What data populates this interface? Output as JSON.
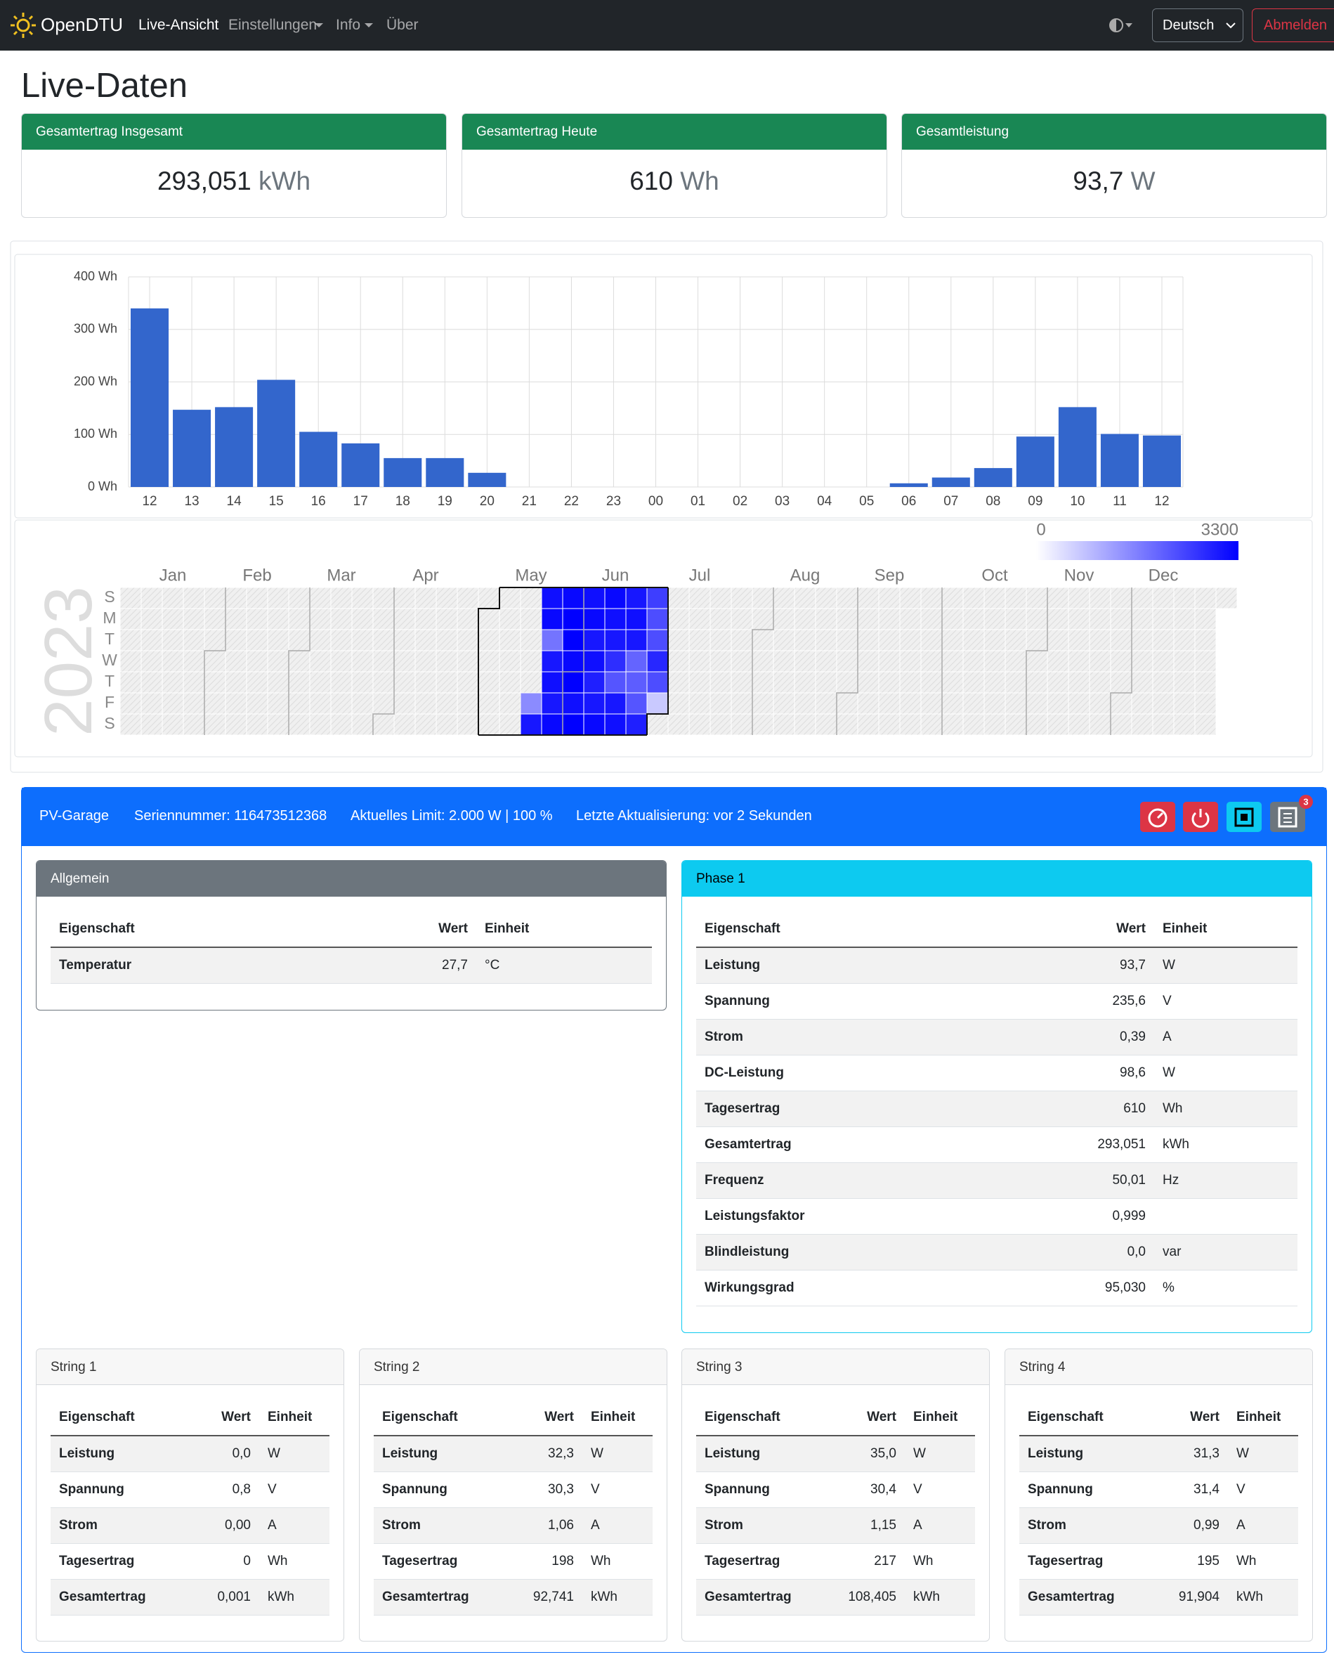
{
  "navbar": {
    "brand": "OpenDTU",
    "items": [
      "Live-Ansicht",
      "Einstellungen",
      "Info",
      "Über"
    ],
    "language": "Deutsch",
    "logout": "Abmelden"
  },
  "page_title": "Live-Daten",
  "summary": [
    {
      "title": "Gesamtertrag Insgesamt",
      "value": "293,051",
      "unit": "kWh"
    },
    {
      "title": "Gesamtertrag Heute",
      "value": "610",
      "unit": "Wh"
    },
    {
      "title": "Gesamtleistung",
      "value": "93,7",
      "unit": "W"
    }
  ],
  "chart_data": [
    {
      "type": "bar",
      "categories": [
        "12",
        "13",
        "14",
        "15",
        "16",
        "17",
        "18",
        "19",
        "20",
        "21",
        "22",
        "23",
        "00",
        "01",
        "02",
        "03",
        "04",
        "05",
        "06",
        "07",
        "08",
        "09",
        "10",
        "11",
        "12"
      ],
      "values": [
        340,
        147,
        152,
        204,
        105,
        83,
        55,
        55,
        27,
        0,
        0,
        0,
        0,
        0,
        0,
        0,
        0,
        0,
        7,
        18,
        36,
        96,
        152,
        101,
        98
      ],
      "color": "#3366cc",
      "ylim": [
        0,
        400
      ],
      "yticks": [
        {
          "value": 0,
          "label": "0 Wh"
        },
        {
          "value": 100,
          "label": "100 Wh"
        },
        {
          "value": 200,
          "label": "200 Wh"
        },
        {
          "value": 300,
          "label": "300 Wh"
        },
        {
          "value": 400,
          "label": "400 Wh"
        }
      ],
      "grid": true
    },
    {
      "type": "heatmap",
      "year": "2023",
      "months": [
        "Jan",
        "Feb",
        "Mar",
        "Apr",
        "May",
        "Jun",
        "Jul",
        "Aug",
        "Sep",
        "Oct",
        "Nov",
        "Dec"
      ],
      "weekdays": [
        "S",
        "M",
        "T",
        "W",
        "T",
        "F",
        "S"
      ],
      "clim": [
        0,
        3300
      ],
      "color": "#0000ff",
      "values": [
        [
          null,
          null,
          null,
          null,
          null,
          1500,
          3000
        ],
        [
          3100,
          3200,
          1800,
          3000,
          3100,
          3000,
          3200
        ],
        [
          3200,
          3300,
          3300,
          3200,
          3300,
          3100,
          3300
        ],
        [
          3100,
          3200,
          3000,
          3100,
          2900,
          3000,
          3200
        ],
        [
          3200,
          3100,
          3000,
          2700,
          2200,
          3000,
          3100
        ],
        [
          3000,
          3100,
          3000,
          2000,
          2100,
          2200,
          2900
        ],
        [
          2500,
          2300,
          2300,
          2800,
          2300,
          700,
          null
        ]
      ]
    }
  ],
  "inverter": {
    "name": "PV-Garage",
    "serial": "Seriennummer: 116473512368",
    "limit": "Aktuelles Limit: 2.000 W | 100 %",
    "updated": "Letzte Aktualisierung: vor 2 Sekunden",
    "badge": "3"
  },
  "tables": [
    {
      "title": "Allgemein",
      "header": [
        "Eigenschaft",
        "Wert",
        "Einheit"
      ],
      "rows": [
        [
          "Temperatur",
          "27,7",
          "°C"
        ]
      ]
    },
    {
      "title": "Phase 1",
      "header": [
        "Eigenschaft",
        "Wert",
        "Einheit"
      ],
      "rows": [
        [
          "Leistung",
          "93,7",
          "W"
        ],
        [
          "Spannung",
          "235,6",
          "V"
        ],
        [
          "Strom",
          "0,39",
          "A"
        ],
        [
          "DC-Leistung",
          "98,6",
          "W"
        ],
        [
          "Tagesertrag",
          "610",
          "Wh"
        ],
        [
          "Gesamtertrag",
          "293,051",
          "kWh"
        ],
        [
          "Frequenz",
          "50,01",
          "Hz"
        ],
        [
          "Leistungsfaktor",
          "0,999",
          ""
        ],
        [
          "Blindleistung",
          "0,0",
          "var"
        ],
        [
          "Wirkungsgrad",
          "95,030",
          "%"
        ]
      ]
    },
    {
      "title": "String 1",
      "header": [
        "Eigenschaft",
        "Wert",
        "Einheit"
      ],
      "rows": [
        [
          "Leistung",
          "0,0",
          "W"
        ],
        [
          "Spannung",
          "0,8",
          "V"
        ],
        [
          "Strom",
          "0,00",
          "A"
        ],
        [
          "Tagesertrag",
          "0",
          "Wh"
        ],
        [
          "Gesamtertrag",
          "0,001",
          "kWh"
        ]
      ]
    },
    {
      "title": "String 2",
      "header": [
        "Eigenschaft",
        "Wert",
        "Einheit"
      ],
      "rows": [
        [
          "Leistung",
          "32,3",
          "W"
        ],
        [
          "Spannung",
          "30,3",
          "V"
        ],
        [
          "Strom",
          "1,06",
          "A"
        ],
        [
          "Tagesertrag",
          "198",
          "Wh"
        ],
        [
          "Gesamtertrag",
          "92,741",
          "kWh"
        ]
      ]
    },
    {
      "title": "String 3",
      "header": [
        "Eigenschaft",
        "Wert",
        "Einheit"
      ],
      "rows": [
        [
          "Leistung",
          "35,0",
          "W"
        ],
        [
          "Spannung",
          "30,4",
          "V"
        ],
        [
          "Strom",
          "1,15",
          "A"
        ],
        [
          "Tagesertrag",
          "217",
          "Wh"
        ],
        [
          "Gesamtertrag",
          "108,405",
          "kWh"
        ]
      ]
    },
    {
      "title": "String 4",
      "header": [
        "Eigenschaft",
        "Wert",
        "Einheit"
      ],
      "rows": [
        [
          "Leistung",
          "31,3",
          "W"
        ],
        [
          "Spannung",
          "31,4",
          "V"
        ],
        [
          "Strom",
          "0,99",
          "A"
        ],
        [
          "Tagesertrag",
          "195",
          "Wh"
        ],
        [
          "Gesamtertrag",
          "91,904",
          "kWh"
        ]
      ]
    }
  ]
}
